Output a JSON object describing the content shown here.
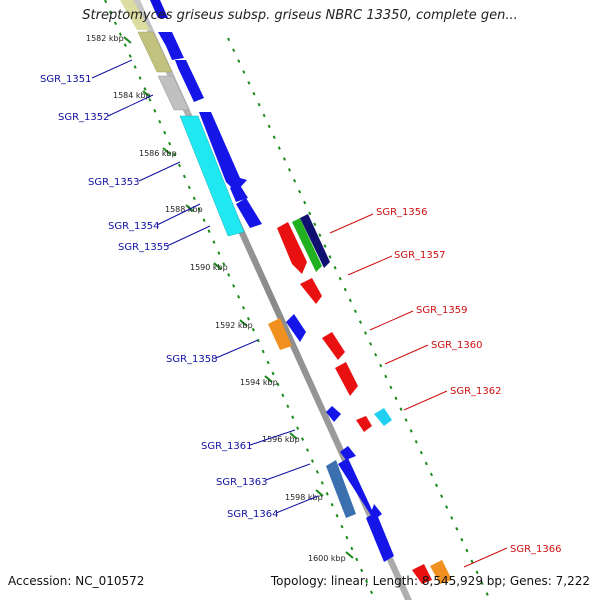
{
  "title": "Streptomyces griseus subsp. griseus NBRC 13350, complete gen...",
  "accession": "Accession: NC_010572",
  "summary": "Topology: linear; Length: 8,545,929 bp; Genes: 7,222",
  "colors": {
    "backbone": "#8a8a8a",
    "tick": "#1a8a1a",
    "label_left": "#1010a0",
    "label_right": "#cc1010"
  },
  "ticks": [
    "1582 kbp",
    "1584 kbp",
    "1586 kbp",
    "1588 kbp",
    "1590 kbp",
    "1592 kbp",
    "1594 kbp",
    "1596 kbp",
    "1598 kbp",
    "1600 kbp"
  ],
  "genes_left": [
    {
      "label": "SGR_1351"
    },
    {
      "label": "SGR_1352"
    },
    {
      "label": "SGR_1353"
    },
    {
      "label": "SGR_1354"
    },
    {
      "label": "SGR_1355"
    },
    {
      "label": "SGR_1358"
    },
    {
      "label": "SGR_1361"
    },
    {
      "label": "SGR_1363"
    },
    {
      "label": "SGR_1364"
    }
  ],
  "genes_right": [
    {
      "label": "SGR_1356"
    },
    {
      "label": "SGR_1357"
    },
    {
      "label": "SGR_1359"
    },
    {
      "label": "SGR_1360"
    },
    {
      "label": "SGR_1362"
    },
    {
      "label": "SGR_1366"
    }
  ]
}
